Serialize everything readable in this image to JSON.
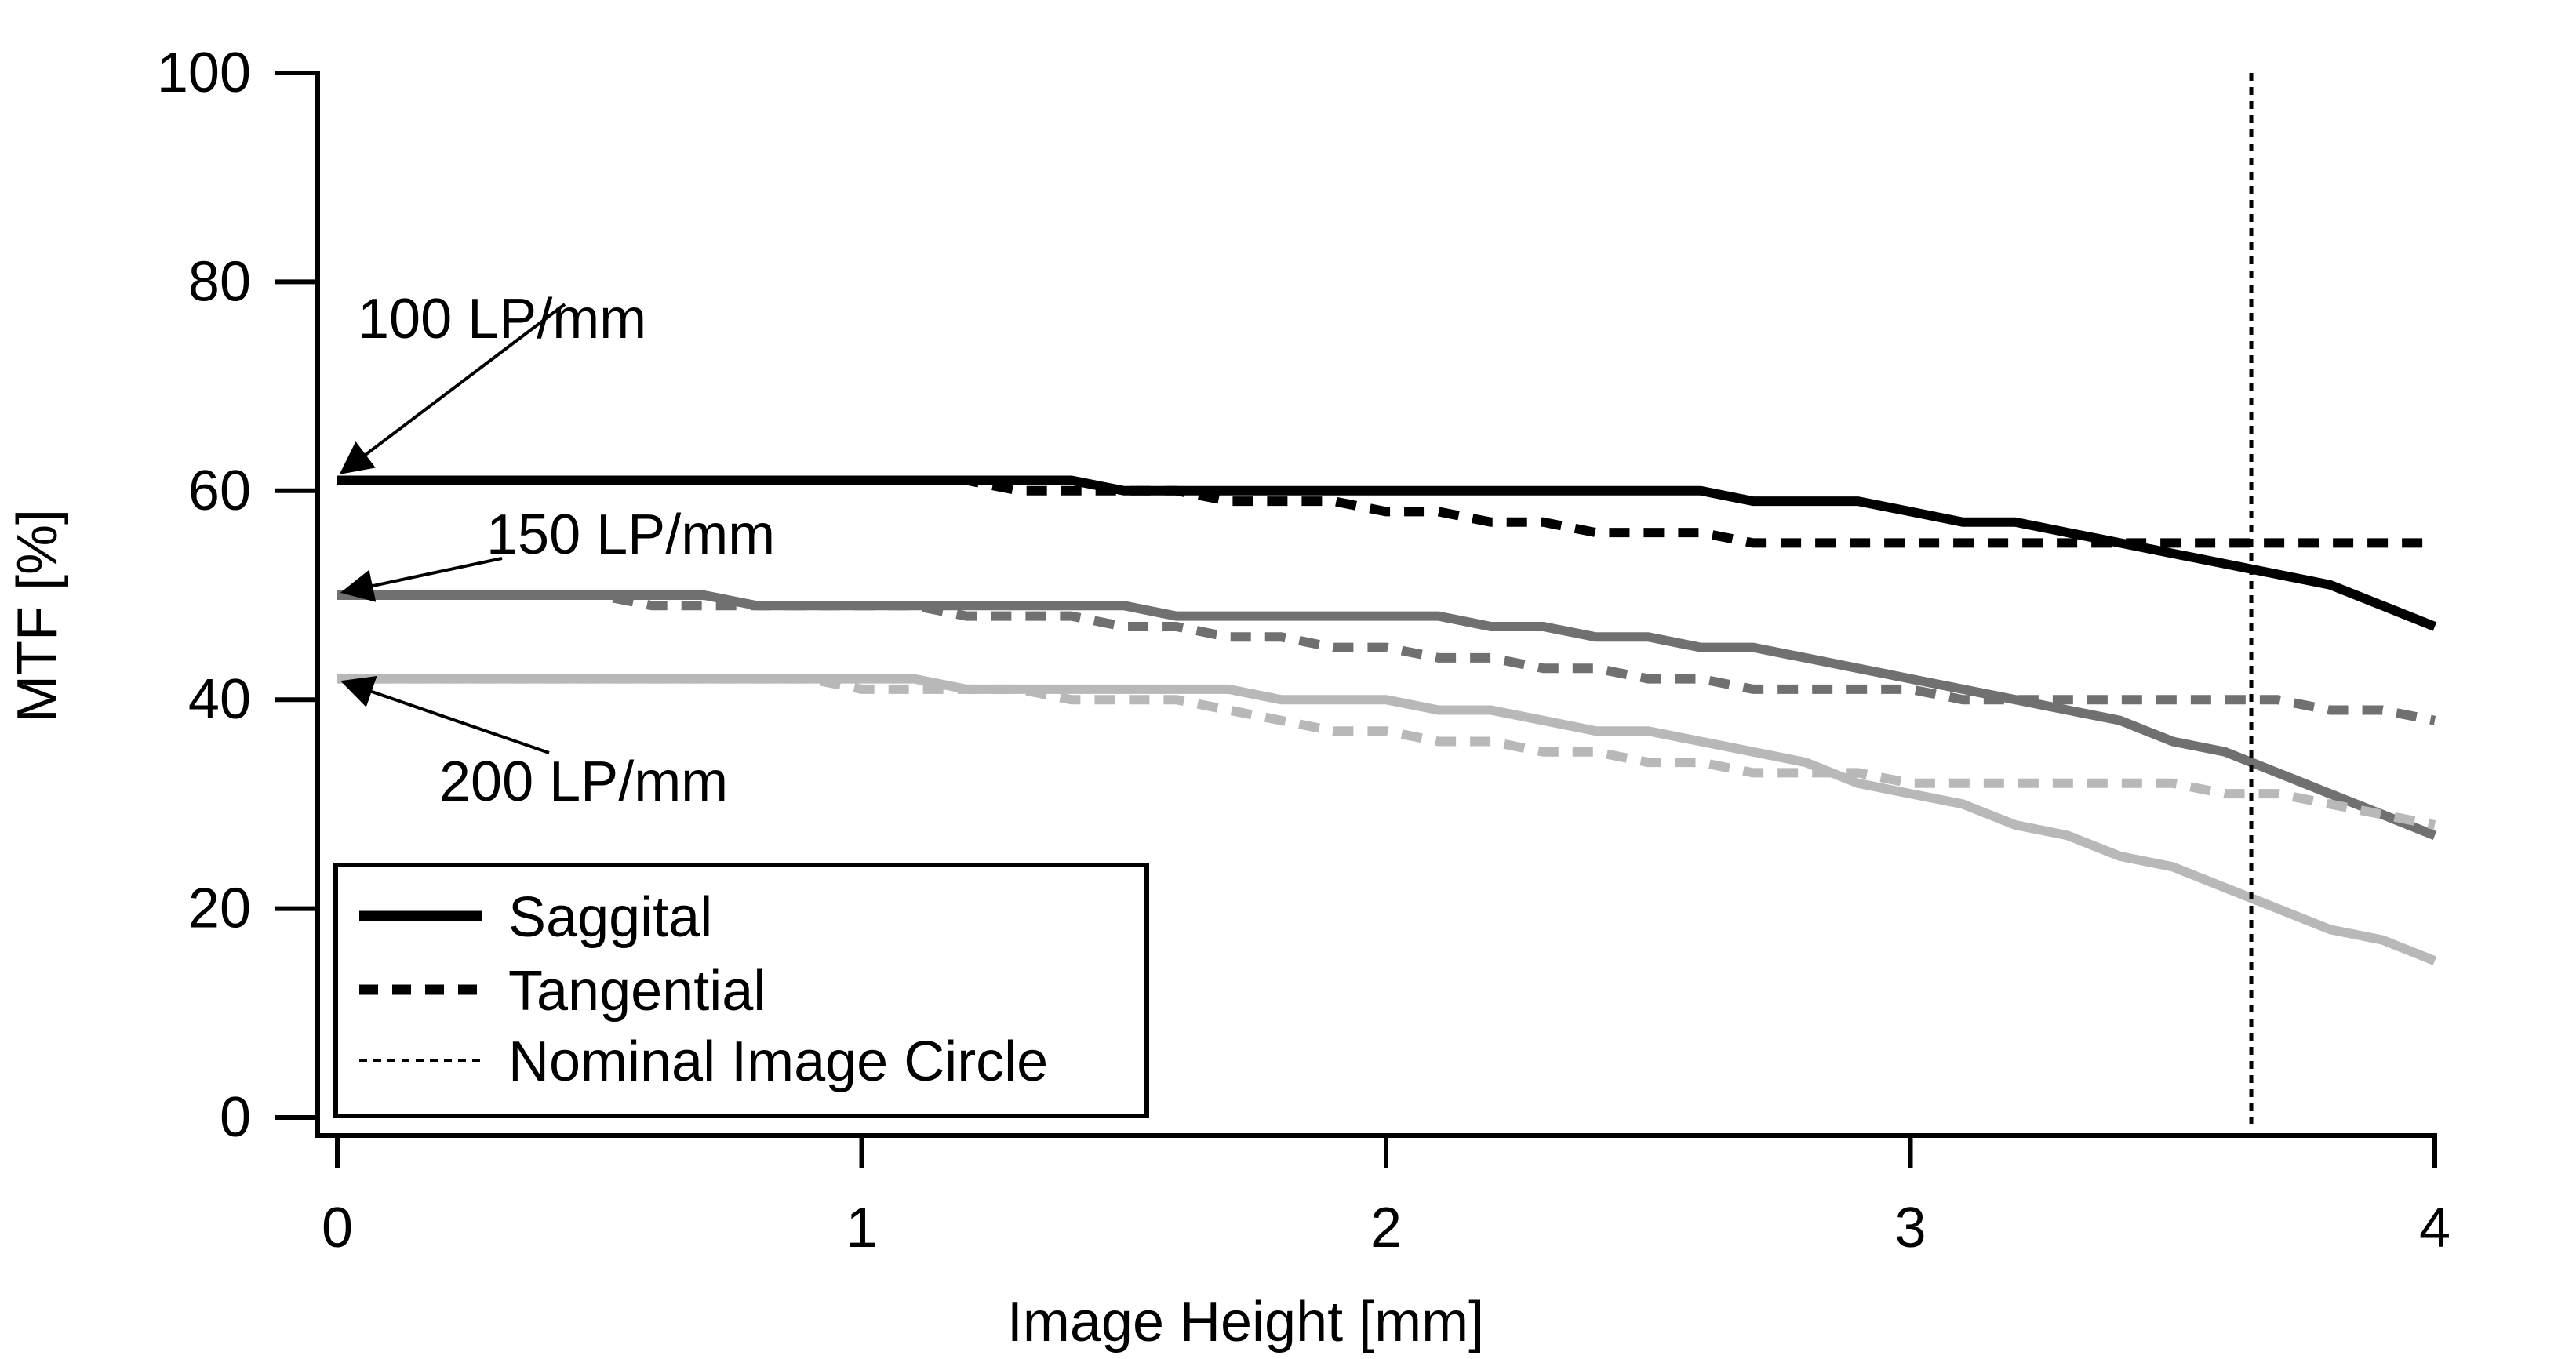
{
  "chart_data": {
    "type": "line",
    "title": "",
    "xlabel": "Image Height [mm]",
    "ylabel": "MTF [%]",
    "xlim": [
      0,
      4
    ],
    "ylim": [
      0,
      100
    ],
    "x_ticks": [
      "0",
      "1",
      "2",
      "3",
      "4"
    ],
    "y_ticks": [
      "0",
      "20",
      "40",
      "60",
      "80",
      "100"
    ],
    "x_tick_values": [
      0,
      1,
      2,
      3,
      4
    ],
    "y_tick_values": [
      0,
      20,
      40,
      60,
      80,
      100
    ],
    "grid": false,
    "legend": {
      "placement": "bottom-left",
      "entries": [
        {
          "label": "Saggital",
          "style": "solid"
        },
        {
          "label": "Tangential",
          "style": "dashed"
        },
        {
          "label": "Nominal Image Circle",
          "style": "dotted"
        }
      ]
    },
    "annotations": [
      {
        "text": "100 LP/mm",
        "points_to": [
          0,
          61
        ]
      },
      {
        "text": "150 LP/mm",
        "points_to": [
          0,
          50
        ]
      },
      {
        "text": "200 LP/mm",
        "points_to": [
          0,
          42
        ]
      }
    ],
    "reference_line": {
      "x": 3.65,
      "style": "dotted"
    },
    "x": [
      0,
      0.1,
      0.2,
      0.3,
      0.4,
      0.5,
      0.6,
      0.7,
      0.8,
      0.9,
      1.0,
      1.1,
      1.2,
      1.3,
      1.4,
      1.5,
      1.6,
      1.7,
      1.8,
      1.9,
      2.0,
      2.1,
      2.2,
      2.3,
      2.4,
      2.5,
      2.6,
      2.7,
      2.8,
      2.9,
      3.0,
      3.1,
      3.2,
      3.3,
      3.4,
      3.5,
      3.6,
      3.7,
      3.8,
      3.9,
      4.0
    ],
    "series": [
      {
        "frequency": "100 LP/mm",
        "style": "solid",
        "color": "#000000",
        "values": [
          61,
          61,
          61,
          61,
          61,
          61,
          61,
          61,
          61,
          61,
          61,
          61,
          61,
          61,
          61,
          60,
          60,
          60,
          60,
          60,
          60,
          60,
          60,
          60,
          60,
          60,
          60,
          59,
          59,
          59,
          58,
          57,
          57,
          56,
          55,
          54,
          53,
          52,
          51,
          49,
          47
        ]
      },
      {
        "frequency": "100 LP/mm",
        "style": "dashed",
        "color": "#000000",
        "values": [
          61,
          61,
          61,
          61,
          61,
          61,
          61,
          61,
          61,
          61,
          61,
          61,
          61,
          60,
          60,
          60,
          60,
          59,
          59,
          59,
          58,
          58,
          57,
          57,
          56,
          56,
          56,
          55,
          55,
          55,
          55,
          55,
          55,
          55,
          55,
          55,
          55,
          55,
          55,
          55,
          55
        ]
      },
      {
        "frequency": "150 LP/mm",
        "style": "solid",
        "color": "#707070",
        "values": [
          50,
          50,
          50,
          50,
          50,
          50,
          50,
          50,
          49,
          49,
          49,
          49,
          49,
          49,
          49,
          49,
          48,
          48,
          48,
          48,
          48,
          48,
          47,
          47,
          46,
          46,
          45,
          45,
          44,
          43,
          42,
          41,
          40,
          39,
          38,
          36,
          35,
          33,
          31,
          29,
          27
        ]
      },
      {
        "frequency": "150 LP/mm",
        "style": "dashed",
        "color": "#707070",
        "values": [
          50,
          50,
          50,
          50,
          50,
          50,
          49,
          49,
          49,
          49,
          49,
          49,
          48,
          48,
          48,
          47,
          47,
          46,
          46,
          45,
          45,
          44,
          44,
          43,
          43,
          42,
          42,
          41,
          41,
          41,
          41,
          40,
          40,
          40,
          40,
          40,
          40,
          40,
          39,
          39,
          38
        ]
      },
      {
        "frequency": "200 LP/mm",
        "style": "solid",
        "color": "#b8b8b8",
        "values": [
          42,
          42,
          42,
          42,
          42,
          42,
          42,
          42,
          42,
          42,
          42,
          42,
          41,
          41,
          41,
          41,
          41,
          41,
          40,
          40,
          40,
          39,
          39,
          38,
          37,
          37,
          36,
          35,
          34,
          32,
          31,
          30,
          28,
          27,
          25,
          24,
          22,
          20,
          18,
          17,
          15
        ]
      },
      {
        "frequency": "200 LP/mm",
        "style": "dashed",
        "color": "#b8b8b8",
        "values": [
          42,
          42,
          42,
          42,
          42,
          42,
          42,
          42,
          42,
          42,
          41,
          41,
          41,
          41,
          40,
          40,
          40,
          39,
          38,
          37,
          37,
          36,
          36,
          35,
          35,
          34,
          34,
          33,
          33,
          33,
          32,
          32,
          32,
          32,
          32,
          32,
          31,
          31,
          30,
          29,
          28
        ]
      }
    ]
  }
}
